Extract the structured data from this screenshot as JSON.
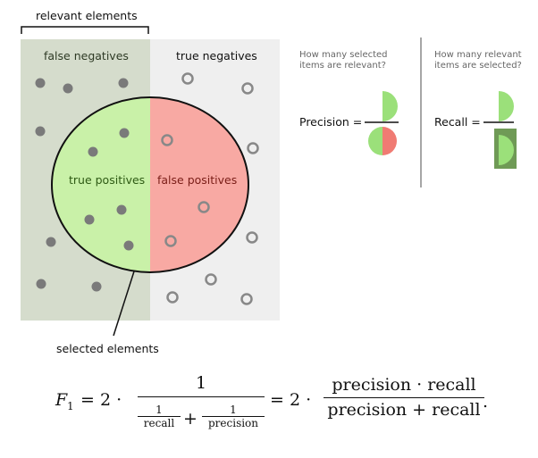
{
  "diagram": {
    "relevant_label": "relevant elements",
    "selected_label": "selected elements",
    "false_negatives": "false negatives",
    "true_negatives": "true negatives",
    "true_positives": "true positives",
    "false_positives": "false positives",
    "colors": {
      "relevant_bg": "#d5dccc",
      "irrelevant_bg": "#efefef",
      "tp_fill": "#c9f1a8",
      "fp_fill": "#f8a9a3",
      "dot_fill": "#7a7a7a",
      "ring_stroke": "#888888"
    }
  },
  "precision": {
    "question": "How many selected\nitems are relevant?",
    "label": "Precision ="
  },
  "recall": {
    "question": "How many relevant\nitems are selected?",
    "label": "Recall ="
  },
  "formula": {
    "lhs": "F",
    "subscript": "1",
    "eq1": "= 2 ·",
    "num1": "1",
    "inv_num_a": "1",
    "inv_den_a": "recall",
    "plus": "+",
    "inv_num_b": "1",
    "inv_den_b": "precision",
    "eq2": "= 2 ·",
    "num2": "precision · recall",
    "den2": "precision + recall",
    "period": "."
  }
}
